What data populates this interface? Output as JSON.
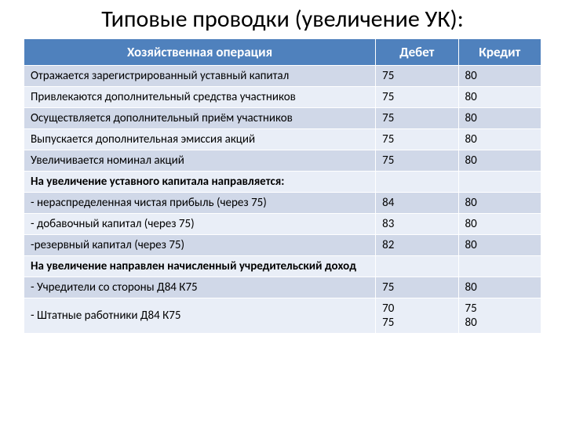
{
  "title": "Типовые проводки (увеличение УК):",
  "table": {
    "columns": [
      "Хозяйственная операция",
      "Дебет",
      "Кредит"
    ],
    "header_bg": "#4f81bd",
    "header_fg": "#ffffff",
    "band_colors": [
      "#d0d8e8",
      "#e9eef7"
    ],
    "border_color": "#ffffff",
    "font_family": "Calibri",
    "header_fontsize": 17,
    "cell_fontsize": 15,
    "col_widths_pct": [
      68,
      16,
      16
    ],
    "rows": [
      {
        "op": "Отражается зарегистрированный уставный капитал",
        "debit": "75",
        "credit": "80",
        "band": "dark",
        "bold": false
      },
      {
        "op": "Привлекаются дополнительный средства участников",
        "debit": "75",
        "credit": "80",
        "band": "light",
        "bold": false
      },
      {
        "op": "Осуществляется дополнительный приём участников",
        "debit": "75",
        "credit": "80",
        "band": "dark",
        "bold": false
      },
      {
        "op": "Выпускается дополнительная эмиссия акций",
        "debit": "75",
        "credit": "80",
        "band": "light",
        "bold": false
      },
      {
        "op": "Увеличивается номинал акций",
        "debit": "75",
        "credit": "80",
        "band": "dark",
        "bold": false
      },
      {
        "op": "На увеличение уставного капитала направляется:",
        "debit": "",
        "credit": "",
        "band": "light",
        "bold": true
      },
      {
        "op": "- нераспределенная чистая прибыль  (через 75)",
        "debit": "84",
        "credit": "80",
        "band": "dark",
        "bold": false
      },
      {
        "op": "- добавочный капитал  (через 75)",
        "debit": "83",
        "credit": "80",
        "band": "light",
        "bold": false
      },
      {
        "op": "-резервный капитал (через 75)",
        "debit": "82",
        "credit": "80",
        "band": "dark",
        "bold": false
      },
      {
        "op": "На увеличение направлен начисленный учредительский доход",
        "debit": "",
        "credit": "",
        "band": "light",
        "bold": true
      },
      {
        "op": "- Учредители со стороны Д84 К75",
        "debit": "75",
        "credit": "80",
        "band": "dark",
        "bold": false
      },
      {
        "op": "- Штатные работники Д84 К75",
        "debit": "70\n75",
        "credit": "75\n80",
        "band": "light",
        "bold": false
      }
    ]
  }
}
